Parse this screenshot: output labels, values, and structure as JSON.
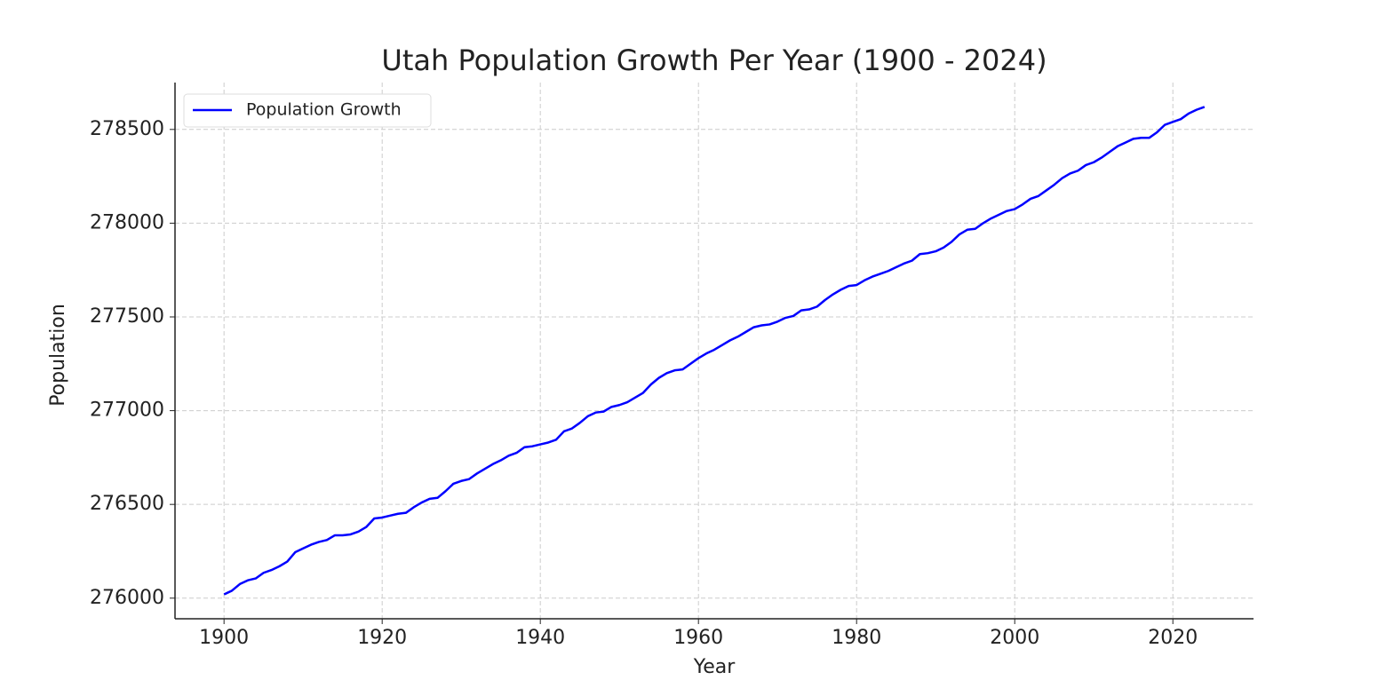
{
  "chart_data": {
    "type": "line",
    "title": "Utah Population Growth Per Year (1900 - 2024)",
    "x_label": "Year",
    "y_label": "Population",
    "x": [
      1900,
      1901,
      1902,
      1903,
      1904,
      1905,
      1906,
      1907,
      1908,
      1909,
      1910,
      1911,
      1912,
      1913,
      1914,
      1915,
      1916,
      1917,
      1918,
      1919,
      1920,
      1921,
      1922,
      1923,
      1924,
      1925,
      1926,
      1927,
      1928,
      1929,
      1930,
      1931,
      1932,
      1933,
      1934,
      1935,
      1936,
      1937,
      1938,
      1939,
      1940,
      1941,
      1942,
      1943,
      1944,
      1945,
      1946,
      1947,
      1948,
      1949,
      1950,
      1951,
      1952,
      1953,
      1954,
      1955,
      1956,
      1957,
      1958,
      1959,
      1960,
      1961,
      1962,
      1963,
      1964,
      1965,
      1966,
      1967,
      1968,
      1969,
      1970,
      1971,
      1972,
      1973,
      1974,
      1975,
      1976,
      1977,
      1978,
      1979,
      1980,
      1981,
      1982,
      1983,
      1984,
      1985,
      1986,
      1987,
      1988,
      1989,
      1990,
      1991,
      1992,
      1993,
      1994,
      1995,
      1996,
      1997,
      1998,
      1999,
      2000,
      2001,
      2002,
      2003,
      2004,
      2005,
      2006,
      2007,
      2008,
      2009,
      2010,
      2011,
      2012,
      2013,
      2014,
      2015,
      2016,
      2017,
      2018,
      2019,
      2020,
      2021,
      2022,
      2023,
      2024
    ],
    "series": [
      {
        "name": "Population Growth",
        "color": "#0000ff",
        "values": [
          276020,
          276040,
          276075,
          276095,
          276105,
          276135,
          276150,
          276170,
          276195,
          276245,
          276265,
          276285,
          276300,
          276310,
          276335,
          276335,
          276340,
          276355,
          276380,
          276425,
          276430,
          276440,
          276450,
          276455,
          276485,
          276510,
          276530,
          276535,
          276570,
          276610,
          276625,
          276635,
          276665,
          276690,
          276715,
          276735,
          276760,
          276775,
          276805,
          276810,
          276820,
          276830,
          276845,
          276890,
          276905,
          276935,
          276970,
          276990,
          276995,
          277020,
          277030,
          277045,
          277070,
          277095,
          277140,
          277175,
          277200,
          277215,
          277220,
          277250,
          277280,
          277305,
          277325,
          277350,
          277375,
          277395,
          277420,
          277445,
          277455,
          277460,
          277475,
          277495,
          277505,
          277535,
          277540,
          277555,
          277590,
          277620,
          277645,
          277665,
          277670,
          277695,
          277715,
          277730,
          277745,
          277765,
          277785,
          277800,
          277835,
          277840,
          277850,
          277870,
          277900,
          277940,
          277965,
          277970,
          278000,
          278025,
          278045,
          278065,
          278075,
          278100,
          278130,
          278145,
          278175,
          278205,
          278240,
          278265,
          278280,
          278310,
          278325,
          278350,
          278380,
          278410,
          278430,
          278450,
          278455,
          278455,
          278485,
          278525,
          278540,
          278555,
          278585,
          278605,
          278620
        ]
      }
    ],
    "xlim": [
      1893.8,
      2030.2
    ],
    "xticks": [
      1900,
      1920,
      1940,
      1960,
      1980,
      2000,
      2020
    ],
    "ylim": [
      275890,
      278750
    ],
    "yticks": [
      276000,
      276500,
      277000,
      277500,
      278000,
      278500
    ],
    "grid": true,
    "legend": "upper left"
  }
}
